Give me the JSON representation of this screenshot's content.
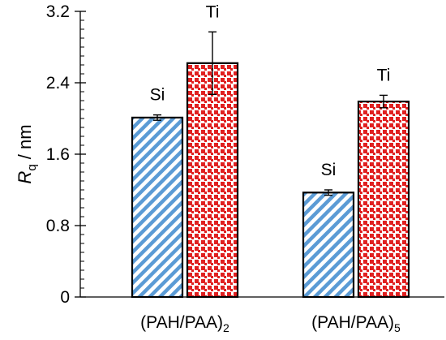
{
  "chart_data": {
    "type": "bar",
    "ylabel": {
      "symbol": "R",
      "subscript": "q",
      "unit": " / nm"
    },
    "ylim": [
      0,
      3.2
    ],
    "yticks": [
      0,
      0.8,
      1.6,
      2.4,
      3.2
    ],
    "ytick_labels": [
      "0",
      "0.8",
      "1.6",
      "2.4",
      "3.2"
    ],
    "grid": false,
    "legend": "none",
    "categories": [
      {
        "base": "(PAH/PAA)",
        "subscript": "2"
      },
      {
        "base": "(PAH/PAA)",
        "subscript": "5"
      }
    ],
    "series": [
      {
        "name": "Si",
        "color": "#5b9bd5",
        "pattern": "diagonal-stripes",
        "values": [
          2.01,
          1.17
        ],
        "errors": [
          0.03,
          0.03
        ]
      },
      {
        "name": "Ti",
        "color": "#e02020",
        "pattern": "dots",
        "values": [
          2.62,
          2.19
        ],
        "errors": [
          0.35,
          0.07
        ]
      }
    ]
  }
}
